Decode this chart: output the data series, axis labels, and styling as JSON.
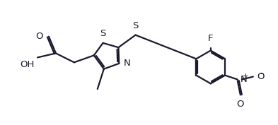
{
  "bg_color": "#ffffff",
  "line_color": "#1a1a2e",
  "line_width": 1.6,
  "font_size": 9.5,
  "fig_w": 3.93,
  "fig_h": 1.77,
  "xlim": [
    0,
    3.93
  ],
  "ylim": [
    0,
    1.77
  ]
}
